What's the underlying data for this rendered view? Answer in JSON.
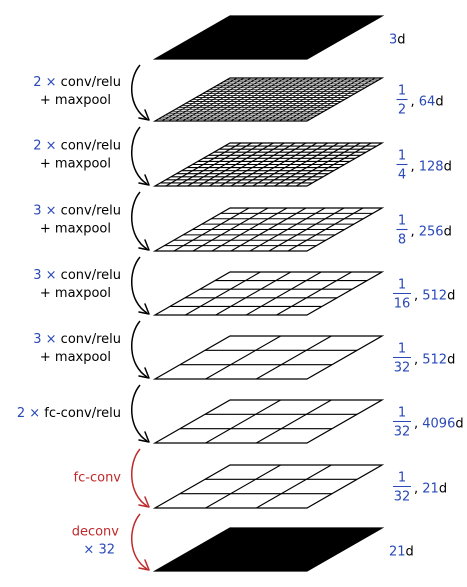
{
  "colors": {
    "accent_blue": "#2a49b8",
    "accent_red": "#c0292b",
    "ink": "#000000"
  },
  "layers": [
    {
      "solid": true,
      "grid": 0,
      "label_plain": "3d"
    },
    {
      "solid": false,
      "grid": 22,
      "frac_num": "1",
      "frac_den": "2",
      "channels": "64",
      "channel_unit": "d"
    },
    {
      "solid": false,
      "grid": 14,
      "frac_num": "1",
      "frac_den": "4",
      "channels": "128",
      "channel_unit": "d"
    },
    {
      "solid": false,
      "grid": 8,
      "frac_num": "1",
      "frac_den": "8",
      "channels": "256",
      "channel_unit": "d"
    },
    {
      "solid": false,
      "grid": 5,
      "frac_num": "1",
      "frac_den": "16",
      "channels": "512",
      "channel_unit": "d"
    },
    {
      "solid": false,
      "grid": 3,
      "frac_num": "1",
      "frac_den": "32",
      "channels": "512",
      "channel_unit": "d"
    },
    {
      "solid": false,
      "grid": 3,
      "frac_num": "1",
      "frac_den": "32",
      "channels": "4096",
      "channel_unit": "d"
    },
    {
      "solid": false,
      "grid": 3,
      "frac_num": "1",
      "frac_den": "32",
      "channels": "21",
      "channel_unit": "d"
    },
    {
      "solid": true,
      "grid": 0,
      "label_plain": "21d"
    }
  ],
  "ops": [
    {
      "mult": "2",
      "times": "×",
      "op": "conv/relu",
      "line2": "+ maxpool",
      "arrow_color": "black"
    },
    {
      "mult": "2",
      "times": "×",
      "op": "conv/relu",
      "line2": "+ maxpool",
      "arrow_color": "black"
    },
    {
      "mult": "3",
      "times": "×",
      "op": "conv/relu",
      "line2": "+ maxpool",
      "arrow_color": "black"
    },
    {
      "mult": "3",
      "times": "×",
      "op": "conv/relu",
      "line2": "+ maxpool",
      "arrow_color": "black"
    },
    {
      "mult": "3",
      "times": "×",
      "op": "conv/relu",
      "line2": "+ maxpool",
      "arrow_color": "black"
    },
    {
      "mult": "2",
      "times": "×",
      "op": "fc-conv/relu",
      "line2": "",
      "arrow_color": "black"
    },
    {
      "mult": "",
      "times": "",
      "op": "fc-conv",
      "line2": "",
      "arrow_color": "red"
    },
    {
      "mult": "",
      "times": "",
      "op": "deconv",
      "line2": "× 32",
      "arrow_color": "red"
    }
  ]
}
